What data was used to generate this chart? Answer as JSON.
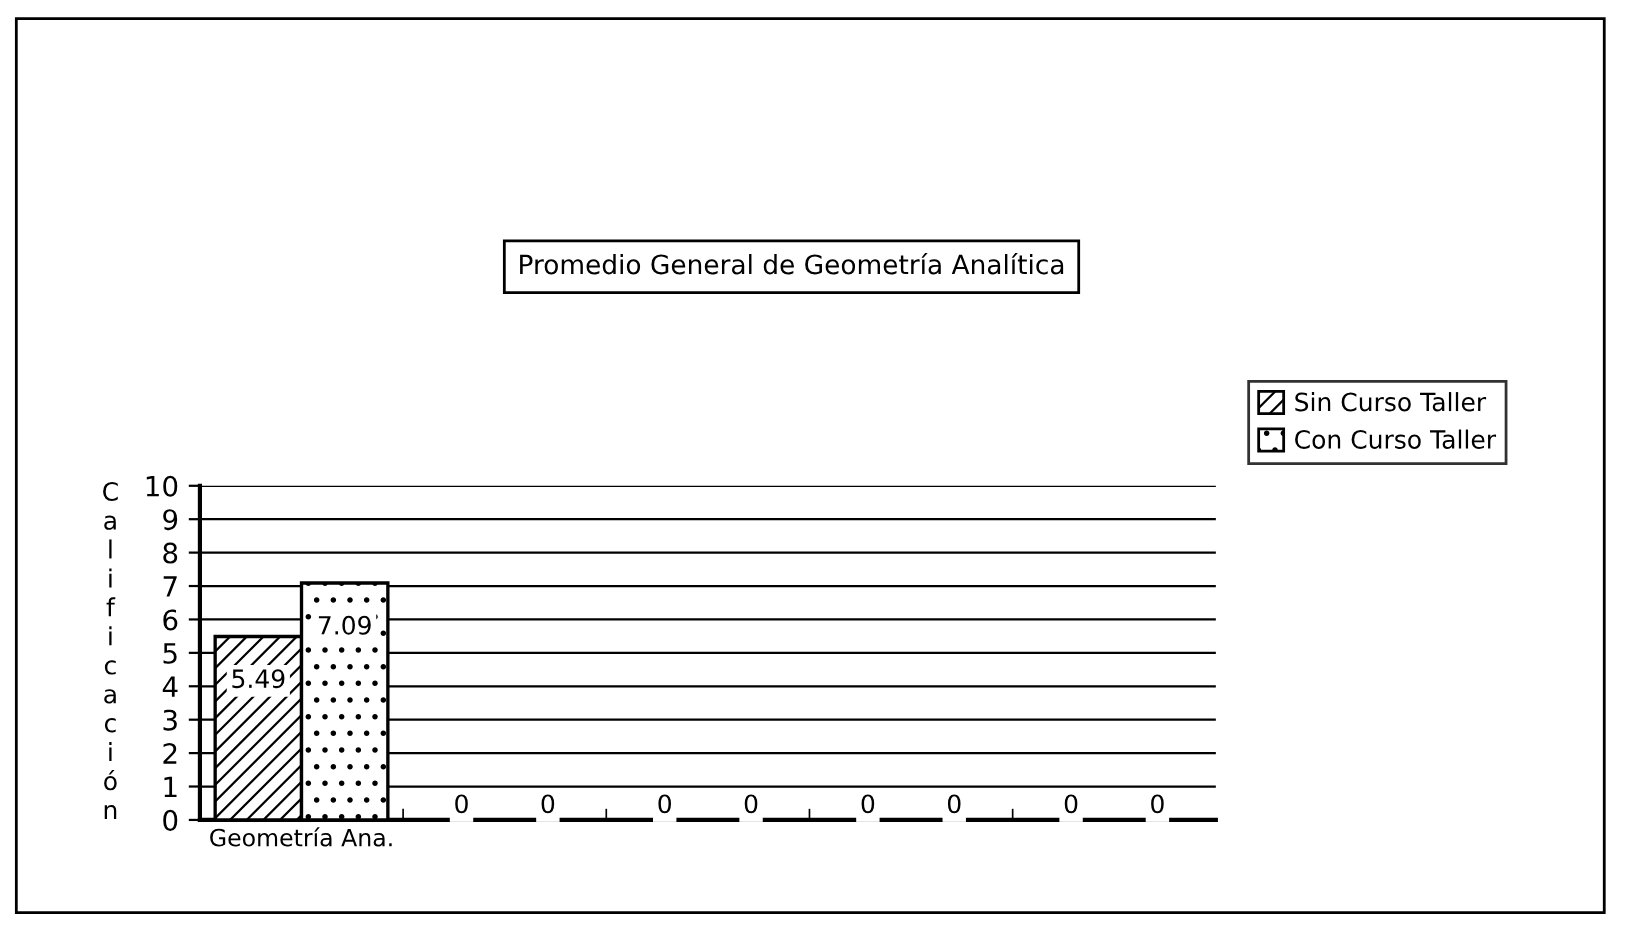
{
  "chart_data": {
    "type": "bar",
    "title": "Promedio General de Geometría Analítica",
    "ylabel": "Calificación",
    "categories": [
      "Geometría Ana.",
      null,
      null,
      null,
      null
    ],
    "series": [
      {
        "name": "Sin Curso Taller",
        "color": "#000000",
        "values": [
          5.49,
          0,
          0,
          0,
          0
        ]
      },
      {
        "name": "Con Curso Taller",
        "color": "#000000",
        "values": [
          7.09,
          0,
          0,
          0,
          0
        ]
      }
    ],
    "ylim": [
      0,
      10
    ],
    "yticks": [
      0,
      1,
      2,
      3,
      4,
      5,
      6,
      7,
      8,
      9,
      10
    ],
    "grid": "y",
    "legend": "right",
    "data_labels": true
  }
}
